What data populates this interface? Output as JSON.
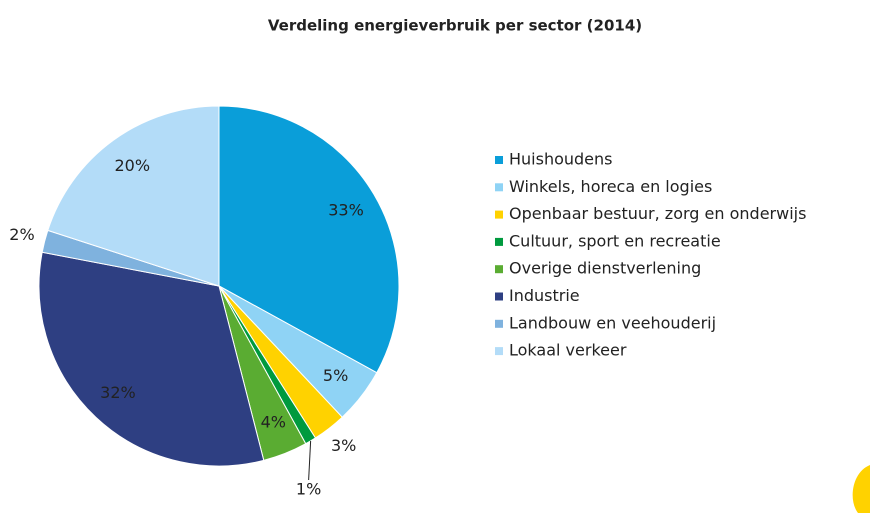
{
  "chart_data": {
    "type": "pie",
    "title": "Verdeling energieverbruik per sector (2014)",
    "categories": [
      "Huishoudens",
      "Winkels, horeca en logies",
      "Openbaar bestuur, zorg en onderwijs",
      "Cultuur, sport en recreatie",
      "Overige dienstverlening",
      "Industrie",
      "Landbouw en veehouderij",
      "Lokaal verkeer"
    ],
    "values": [
      33,
      5,
      3,
      1,
      4,
      32,
      2,
      20
    ],
    "value_labels": [
      "33%",
      "5%",
      "3%",
      "1%",
      "4%",
      "32%",
      "2%",
      "20%"
    ],
    "colors": [
      "#0a9ed9",
      "#8fd3f5",
      "#ffd200",
      "#009a3e",
      "#5aac32",
      "#2e3f82",
      "#7fb2de",
      "#b3dcf8"
    ],
    "legend": "right"
  }
}
